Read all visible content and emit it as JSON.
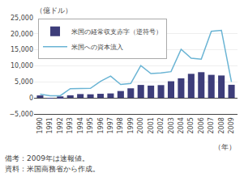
{
  "chart_data": {
    "type": "bar",
    "x": [
      1990,
      1991,
      1992,
      1993,
      1994,
      1995,
      1996,
      1997,
      1998,
      1999,
      2000,
      2001,
      2002,
      2003,
      2004,
      2005,
      2006,
      2007,
      2008,
      2009
    ],
    "series": [
      {
        "name": "米国の経常収支赤字（逆符号）",
        "type": "bar",
        "color": "#3d3d7a",
        "values": [
          790,
          30,
          480,
          820,
          1210,
          1130,
          1290,
          1400,
          2150,
          3000,
          4050,
          3850,
          4000,
          5200,
          6120,
          7520,
          8030,
          7200,
          7000,
          4100
        ]
      },
      {
        "name": "米国への資本流入",
        "type": "line",
        "color": "#6ab4d4",
        "values": [
          1200,
          700,
          700,
          2900,
          2950,
          3000,
          5200,
          6800,
          4200,
          4500,
          10100,
          7600,
          7800,
          8200,
          15200,
          12400,
          12100,
          20800,
          21100,
          5000
        ]
      }
    ],
    "xlim": [
      1989.4,
      2009.6
    ],
    "xticks": [
      1990,
      1991,
      1992,
      1993,
      1994,
      1995,
      1996,
      1997,
      1998,
      1999,
      2000,
      2001,
      2002,
      2003,
      2004,
      2005,
      2006,
      2007,
      2008,
      2009
    ],
    "ylim": [
      -5000,
      25000
    ],
    "yticks": [
      {
        "value": -5000,
        "label": "−5,000"
      },
      0,
      {
        "value": 5000,
        "label": "5,000"
      },
      {
        "value": 10000,
        "label": "10,000"
      },
      {
        "value": 15000,
        "label": "15,000"
      },
      {
        "value": 20000,
        "label": "20,000"
      },
      {
        "value": 25000,
        "label": "25,000"
      }
    ],
    "ylabel": "（億ドル）",
    "xlabel": "（年）",
    "annotations": [
      "備考：2009年は速報値。",
      "資料：米国商務省から作成。"
    ],
    "grid": true,
    "legend": "upper left"
  }
}
